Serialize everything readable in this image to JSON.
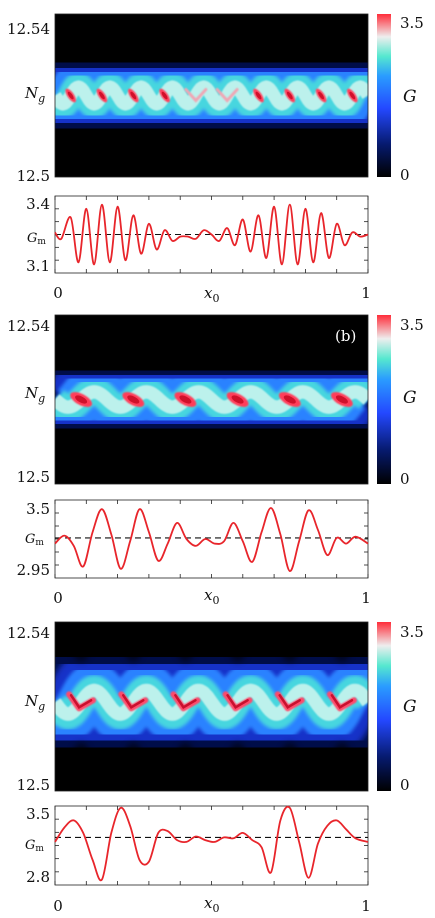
{
  "chart_data": [
    {
      "type": "heatmap",
      "panel_label": "",
      "ylabel": "N_g",
      "xlabel": "",
      "y_ticks": [
        "12.54",
        "12.5"
      ],
      "ylim": [
        12.5,
        12.54
      ],
      "xlim": [
        0,
        1
      ],
      "colorbar": {
        "label": "G",
        "ticks": [
          "3.5",
          "0"
        ],
        "range": [
          0,
          3.5
        ]
      },
      "ridge": {
        "center": 12.52,
        "amplitude": 0.0021,
        "periods": 10,
        "blobs": 10,
        "blob_style": "thin",
        "wide_zones": [
          [
            0.42,
            0.6
          ]
        ]
      }
    },
    {
      "type": "line",
      "xlabel": "x_0",
      "x_ticks": [
        "0",
        "1"
      ],
      "y_ticks": [
        "3.4",
        "3.1"
      ],
      "mean_label": "G_m",
      "ylim": [
        3.07,
        3.43
      ],
      "xlim": [
        0,
        1
      ],
      "mean": 3.25,
      "series": [
        {
          "x": [
            0,
            0.02,
            0.05,
            0.075,
            0.1,
            0.125,
            0.15,
            0.175,
            0.2,
            0.225,
            0.25,
            0.275,
            0.3,
            0.325,
            0.35,
            0.375,
            0.4,
            0.425,
            0.45,
            0.475,
            0.5,
            0.525,
            0.55,
            0.575,
            0.6,
            0.625,
            0.65,
            0.675,
            0.7,
            0.725,
            0.75,
            0.775,
            0.8,
            0.825,
            0.85,
            0.875,
            0.9,
            0.925,
            0.95,
            0.975,
            1.0
          ],
          "y": [
            3.26,
            3.23,
            3.33,
            3.12,
            3.37,
            3.11,
            3.39,
            3.12,
            3.38,
            3.13,
            3.34,
            3.16,
            3.3,
            3.18,
            3.27,
            3.22,
            3.24,
            3.24,
            3.23,
            3.27,
            3.25,
            3.22,
            3.28,
            3.2,
            3.32,
            3.17,
            3.34,
            3.14,
            3.38,
            3.11,
            3.39,
            3.11,
            3.37,
            3.12,
            3.35,
            3.14,
            3.3,
            3.2,
            3.26,
            3.24,
            3.25
          ]
        }
      ]
    },
    {
      "type": "heatmap",
      "panel_label": "(b)",
      "ylabel": "N_g",
      "xlabel": "",
      "y_ticks": [
        "12.54",
        "12.5"
      ],
      "ylim": [
        12.5,
        12.54
      ],
      "xlim": [
        0,
        1
      ],
      "colorbar": {
        "label": "G",
        "ticks": [
          "3.5",
          "0"
        ],
        "range": [
          0,
          3.5
        ]
      },
      "ridge": {
        "center": 12.52,
        "amplitude": 0.0018,
        "periods": 6,
        "blobs": 6,
        "blob_style": "round",
        "wide_zones": []
      }
    },
    {
      "type": "line",
      "xlabel": "x_0",
      "x_ticks": [
        "0",
        "1"
      ],
      "y_ticks": [
        "3.5",
        "2.95"
      ],
      "mean_label": "G_m",
      "ylim": [
        2.9,
        3.58
      ],
      "xlim": [
        0,
        1
      ],
      "mean": 3.25,
      "series": [
        {
          "x": [
            0,
            0.03,
            0.06,
            0.09,
            0.12,
            0.15,
            0.18,
            0.21,
            0.24,
            0.27,
            0.3,
            0.33,
            0.36,
            0.39,
            0.42,
            0.45,
            0.48,
            0.51,
            0.54,
            0.57,
            0.6,
            0.63,
            0.66,
            0.69,
            0.72,
            0.75,
            0.78,
            0.81,
            0.84,
            0.87,
            0.9,
            0.93,
            0.96,
            1.0
          ],
          "y": [
            3.2,
            3.27,
            3.18,
            3.0,
            3.3,
            3.5,
            3.28,
            2.98,
            3.22,
            3.5,
            3.3,
            3.05,
            3.2,
            3.38,
            3.24,
            3.18,
            3.24,
            3.2,
            3.22,
            3.38,
            3.22,
            3.04,
            3.3,
            3.51,
            3.28,
            2.96,
            3.22,
            3.49,
            3.32,
            3.1,
            3.25,
            3.2,
            3.26,
            3.2
          ]
        }
      ]
    },
    {
      "type": "heatmap",
      "panel_label": "",
      "ylabel": "N_g",
      "xlabel": "",
      "y_ticks": [
        "12.54",
        "12.5"
      ],
      "ylim": [
        12.5,
        12.54
      ],
      "xlim": [
        0,
        1
      ],
      "colorbar": {
        "label": "G",
        "ticks": [
          "3.5",
          "0"
        ],
        "range": [
          0,
          3.5
        ]
      },
      "ridge": {
        "center": 12.521,
        "amplitude": 0.0028,
        "periods": 6,
        "blobs": 6,
        "blob_style": "chevron",
        "wide_zones": []
      }
    },
    {
      "type": "line",
      "xlabel": "x_0",
      "x_ticks": [
        "0",
        "1"
      ],
      "y_ticks": [
        "3.5",
        "2.8"
      ],
      "mean_label": "G_m",
      "ylim": [
        2.72,
        3.6
      ],
      "xlim": [
        0,
        1
      ],
      "mean": 3.25,
      "series": [
        {
          "x": [
            0,
            0.03,
            0.06,
            0.09,
            0.12,
            0.15,
            0.18,
            0.21,
            0.24,
            0.27,
            0.3,
            0.33,
            0.36,
            0.39,
            0.42,
            0.45,
            0.48,
            0.51,
            0.54,
            0.57,
            0.6,
            0.63,
            0.66,
            0.69,
            0.72,
            0.75,
            0.78,
            0.81,
            0.84,
            0.87,
            0.9,
            0.93,
            0.96,
            1.0
          ],
          "y": [
            3.2,
            3.36,
            3.44,
            3.3,
            3.0,
            2.78,
            3.3,
            3.58,
            3.38,
            3.0,
            2.98,
            3.3,
            3.32,
            3.22,
            3.2,
            3.26,
            3.22,
            3.2,
            3.25,
            3.24,
            3.3,
            3.22,
            3.14,
            2.86,
            3.44,
            3.58,
            3.2,
            2.8,
            3.18,
            3.38,
            3.44,
            3.34,
            3.24,
            3.2
          ]
        }
      ]
    }
  ]
}
